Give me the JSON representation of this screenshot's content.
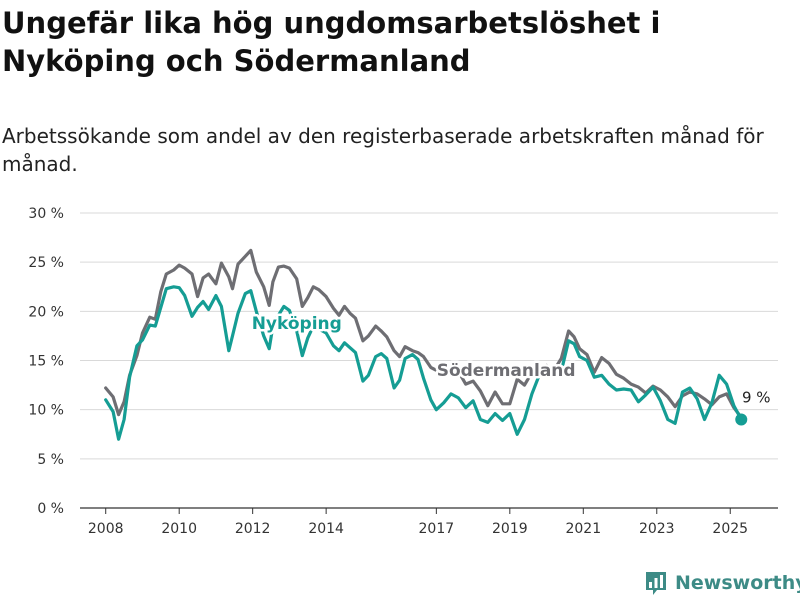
{
  "title": "Ungefär lika hög ungdomsarbetslöshet i Nyköping och Södermanland",
  "subtitle": "Arbetssökande som andel av den registerbaserade arbetskraften månad för månad.",
  "brand": {
    "name": "Newsworthy",
    "icon": "bar-chart-logo-icon",
    "color": "#3d8b86"
  },
  "chart_data": {
    "type": "line",
    "title": "Ungefär lika hög ungdomsarbetslöshet i Nyköping och Södermanland",
    "ylim": [
      0,
      30
    ],
    "xlim": [
      2007.3,
      2026.3
    ],
    "yticks": [
      0,
      5,
      10,
      15,
      20,
      25,
      30
    ],
    "ytick_labels": [
      "0 %",
      "5 %",
      "10 %",
      "15 %",
      "20 %",
      "25 %",
      "30 %"
    ],
    "xticks": [
      2008,
      2010,
      2012,
      2014,
      2017,
      2019,
      2021,
      2023,
      2025
    ],
    "xtick_labels": [
      "2008",
      "2010",
      "2012",
      "2014",
      "2017",
      "2019",
      "2021",
      "2023",
      "2025"
    ],
    "grid": true,
    "legend": "inline",
    "end_label": "9 %",
    "series": [
      {
        "name": "Södermanland",
        "color": "#6e6e73",
        "label_at": [
          2018.9,
          13.4
        ],
        "x": [
          2008.0,
          2008.2,
          2008.35,
          2008.5,
          2008.65,
          2008.85,
          2009.0,
          2009.2,
          2009.35,
          2009.5,
          2009.65,
          2009.85,
          2010.0,
          2010.15,
          2010.35,
          2010.5,
          2010.65,
          2010.8,
          2011.0,
          2011.15,
          2011.35,
          2011.45,
          2011.6,
          2011.8,
          2011.95,
          2012.1,
          2012.3,
          2012.45,
          2012.55,
          2012.7,
          2012.85,
          2013.0,
          2013.2,
          2013.35,
          2013.5,
          2013.65,
          2013.8,
          2014.0,
          2014.2,
          2014.35,
          2014.5,
          2014.65,
          2014.8,
          2015.0,
          2015.15,
          2015.35,
          2015.5,
          2015.65,
          2015.85,
          2016.0,
          2016.15,
          2016.35,
          2016.5,
          2016.65,
          2016.85,
          2017.0,
          2017.2,
          2017.4,
          2017.6,
          2017.8,
          2018.0,
          2018.2,
          2018.4,
          2018.6,
          2018.8,
          2019.0,
          2019.2,
          2019.4,
          2019.6,
          2019.8,
          2020.0,
          2020.2,
          2020.4,
          2020.6,
          2020.75,
          2020.9,
          2021.1,
          2021.3,
          2021.5,
          2021.7,
          2021.9,
          2022.1,
          2022.3,
          2022.5,
          2022.7,
          2022.9,
          2023.1,
          2023.3,
          2023.5,
          2023.7,
          2023.9,
          2024.1,
          2024.3,
          2024.5,
          2024.7,
          2024.9,
          2025.1,
          2025.3
        ],
        "values": [
          12.2,
          11.3,
          9.5,
          10.8,
          13.5,
          15.5,
          17.8,
          19.4,
          19.2,
          22.0,
          23.8,
          24.2,
          24.7,
          24.4,
          23.8,
          21.5,
          23.4,
          23.8,
          22.8,
          24.9,
          23.5,
          22.3,
          24.8,
          25.6,
          26.2,
          24.0,
          22.5,
          20.6,
          23.0,
          24.5,
          24.6,
          24.4,
          23.3,
          20.5,
          21.4,
          22.5,
          22.2,
          21.5,
          20.3,
          19.6,
          20.5,
          19.8,
          19.3,
          17.0,
          17.5,
          18.5,
          18.0,
          17.4,
          16.0,
          15.4,
          16.4,
          16.0,
          15.8,
          15.4,
          14.3,
          14.0,
          13.4,
          14.3,
          13.9,
          12.6,
          12.9,
          11.9,
          10.4,
          11.8,
          10.6,
          10.6,
          13.1,
          12.5,
          13.8,
          13.9,
          14.5,
          14.0,
          15.2,
          18.0,
          17.4,
          16.2,
          15.6,
          13.8,
          15.3,
          14.7,
          13.6,
          13.2,
          12.6,
          12.3,
          11.7,
          12.4,
          12.0,
          11.3,
          10.3,
          11.4,
          11.8,
          11.6,
          11.1,
          10.5,
          11.3,
          11.6,
          10.2,
          9.2
        ]
      },
      {
        "name": "Nyköping",
        "color": "#159d94",
        "label_at": [
          2013.2,
          18.2
        ],
        "x": [
          2008.0,
          2008.2,
          2008.35,
          2008.5,
          2008.65,
          2008.85,
          2009.0,
          2009.2,
          2009.35,
          2009.5,
          2009.65,
          2009.85,
          2010.0,
          2010.15,
          2010.35,
          2010.5,
          2010.65,
          2010.8,
          2011.0,
          2011.15,
          2011.35,
          2011.45,
          2011.6,
          2011.8,
          2011.95,
          2012.1,
          2012.3,
          2012.45,
          2012.55,
          2012.7,
          2012.85,
          2013.0,
          2013.2,
          2013.35,
          2013.5,
          2013.65,
          2013.8,
          2014.0,
          2014.2,
          2014.35,
          2014.5,
          2014.65,
          2014.8,
          2015.0,
          2015.15,
          2015.35,
          2015.5,
          2015.65,
          2015.85,
          2016.0,
          2016.15,
          2016.35,
          2016.5,
          2016.65,
          2016.85,
          2017.0,
          2017.2,
          2017.4,
          2017.6,
          2017.8,
          2018.0,
          2018.2,
          2018.4,
          2018.6,
          2018.8,
          2019.0,
          2019.2,
          2019.4,
          2019.6,
          2019.8,
          2020.0,
          2020.2,
          2020.4,
          2020.6,
          2020.75,
          2020.9,
          2021.1,
          2021.3,
          2021.5,
          2021.7,
          2021.9,
          2022.1,
          2022.3,
          2022.5,
          2022.7,
          2022.9,
          2023.1,
          2023.3,
          2023.5,
          2023.7,
          2023.9,
          2024.1,
          2024.3,
          2024.5,
          2024.7,
          2024.9,
          2025.1,
          2025.3
        ],
        "values": [
          11.0,
          9.8,
          7.0,
          9.0,
          13.3,
          16.5,
          17.1,
          18.6,
          18.5,
          20.4,
          22.3,
          22.5,
          22.4,
          21.6,
          19.5,
          20.4,
          21.0,
          20.2,
          21.6,
          20.5,
          16.0,
          17.5,
          19.8,
          21.8,
          22.1,
          20.0,
          17.5,
          16.2,
          18.5,
          19.6,
          20.5,
          20.1,
          18.0,
          15.5,
          17.3,
          18.5,
          18.2,
          17.8,
          16.5,
          16.0,
          16.8,
          16.3,
          15.8,
          12.9,
          13.5,
          15.4,
          15.7,
          15.2,
          12.2,
          13.0,
          15.2,
          15.6,
          15.1,
          13.2,
          11.0,
          10.0,
          10.7,
          11.6,
          11.2,
          10.2,
          10.9,
          9.0,
          8.7,
          9.6,
          8.9,
          9.6,
          7.5,
          9.0,
          11.6,
          13.5,
          14.2,
          13.8,
          13.9,
          17.0,
          16.7,
          15.4,
          15.0,
          13.3,
          13.5,
          12.6,
          12.0,
          12.1,
          12.0,
          10.8,
          11.5,
          12.3,
          10.9,
          9.0,
          8.6,
          11.8,
          12.2,
          11.1,
          9.0,
          10.7,
          13.5,
          12.6,
          10.4,
          9.0
        ]
      }
    ]
  }
}
